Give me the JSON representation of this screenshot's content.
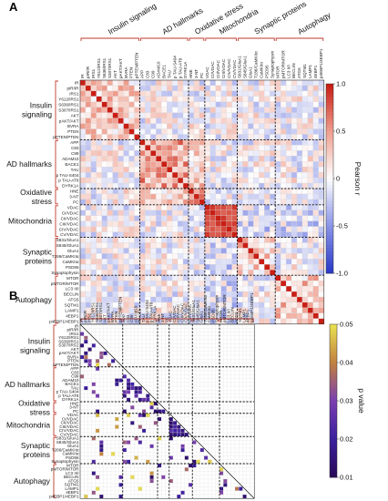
{
  "chart_data": [
    {
      "panel": "A",
      "type": "heatmap",
      "title": "",
      "colorbar_label": "Pearson r",
      "colorbar_ticks": [
        "1.0",
        "0.5",
        "0",
        "-0.5",
        "-1.0"
      ],
      "colorbar_range": [
        -1,
        1
      ],
      "colormap": [
        "#2b3cc8",
        "#8c96e8",
        "#ffffff",
        "#f0a090",
        "#c81e14"
      ],
      "diagonal": 1.0,
      "groups": [
        {
          "name": "Insulin signaling",
          "labels": [
            "IR",
            "pIR/IR",
            "IRS1",
            "Y612/IRS1",
            "S636/IRS1",
            "S307/IRS1",
            "AKT",
            "pAKT/AKT",
            "BVRA",
            "PTEN",
            "pPTEN/PTEN"
          ]
        },
        {
          "name": "AD hallmarks",
          "labels": [
            "APP",
            "C83",
            "C99",
            "ADAM10",
            "BACE1",
            "TAU",
            "p TAU-S404",
            "p TAU-AT8",
            "DYRK1A"
          ]
        },
        {
          "name": "Oxidative stress",
          "labels": [
            "HNE",
            "3-NT",
            "PC"
          ]
        },
        {
          "name": "Mitochondria",
          "labels": [
            "VDAC",
            "CI/VDAC",
            "CII/VDAC",
            "CIII/VDAC",
            "CIV/VDAC",
            "CV/VDAC"
          ]
        },
        {
          "name": "Synaptic proteins",
          "labels": [
            "S831/GluA1",
            "S845/GluA1",
            "GluA1",
            "T286/CaMKIIα",
            "CaMKIIα",
            "PSD95",
            "Synaptophysin"
          ]
        },
        {
          "name": "Autophagy",
          "labels": [
            "MTOR",
            "pMTOR/MTOR",
            "LC3 II/I",
            "BECLIN",
            "ATG5",
            "SQTM1",
            "LAMP1",
            "4EBP1",
            "p4EBP1/4EBP1"
          ]
        }
      ],
      "values_note": "Pairwise Pearson r between all 45 markers; strong positive block within Mitochondria and within AD hallmarks / Oxidative stress; diagonal = 1."
    },
    {
      "panel": "B",
      "type": "heatmap",
      "title": "",
      "colorbar_label": "p value",
      "colorbar_ticks": [
        "0.05",
        "0.04",
        "0.03",
        "0.02",
        "0.01"
      ],
      "colorbar_range": [
        0,
        0.05
      ],
      "colormap": [
        "#2a0a5a",
        "#3b1f9e",
        "#7a3fb0",
        "#c08040",
        "#e8e050"
      ],
      "labels_reference": "same 45 markers and 6 groups as panel A",
      "mask": "upper triangle blank; only significant pairs (p < 0.05) coloured; diagonal crossed"
    }
  ]
}
